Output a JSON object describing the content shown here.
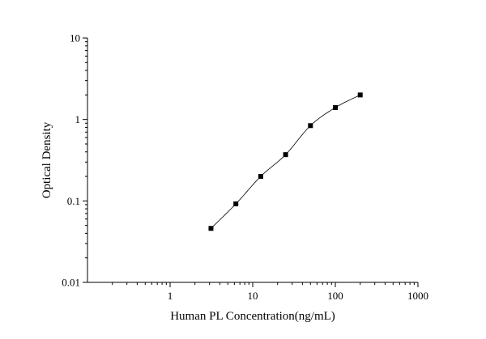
{
  "chart_data": {
    "type": "scatter",
    "title": "",
    "xlabel": "Human PL Concentration(ng/mL)",
    "ylabel": "Optical Density",
    "x_scale": "log",
    "y_scale": "log",
    "xlim": [
      0.1,
      1000
    ],
    "ylim": [
      0.01,
      10
    ],
    "x_ticks": [
      1,
      10,
      100,
      1000
    ],
    "x_tick_labels": [
      "1",
      "10",
      "100",
      "1000"
    ],
    "y_ticks": [
      0.01,
      0.1,
      1,
      10
    ],
    "y_tick_labels": [
      "0.01",
      "0.1",
      "1",
      "10"
    ],
    "grid": false,
    "legend": "none",
    "marker": "square",
    "fitted_curve": true,
    "colors": {
      "axis": "#000000",
      "marker": "#000000",
      "curve": "#000000",
      "background": "#ffffff"
    },
    "series": [
      {
        "x": [
          3.125,
          6.25,
          12.5,
          25,
          50,
          100,
          200
        ],
        "y": [
          0.046,
          0.092,
          0.2,
          0.37,
          0.84,
          1.4,
          2.0
        ]
      }
    ]
  }
}
